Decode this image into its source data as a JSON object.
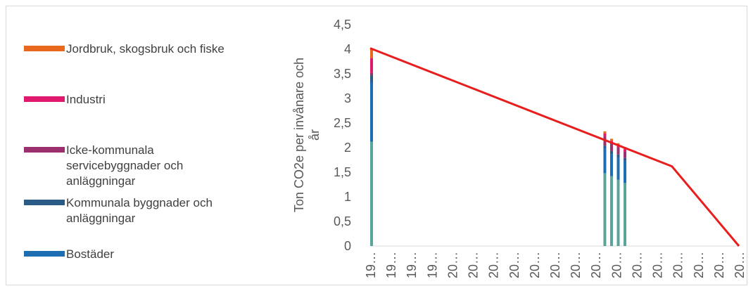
{
  "chart_data": {
    "type": "bar",
    "title": "",
    "ylabel_lines": [
      "Ton CO2e per invånare och",
      "år"
    ],
    "ylim": [
      0,
      4.5
    ],
    "y_ticks": [
      "0",
      "0,5",
      "1",
      "1,5",
      "2",
      "2,5",
      "3",
      "3,5",
      "4",
      "4,5"
    ],
    "x_tick_labels": [
      "19…",
      "19…",
      "19…",
      "19…",
      "20…",
      "20…",
      "20…",
      "20…",
      "20…",
      "20…",
      "20…",
      "20…",
      "20…",
      "20…",
      "20…",
      "20…",
      "20…",
      "20…",
      "20…"
    ],
    "grid": false,
    "legend_position": "left",
    "series": [
      {
        "name": "Jordbruk, skogsbruk och fiske",
        "color": "#e8681e",
        "points": [
          {
            "x": 1990,
            "y": 0.2
          },
          {
            "x": 2025,
            "y": 0.04
          },
          {
            "x": 2026,
            "y": 0.04
          },
          {
            "x": 2027,
            "y": 0.04
          },
          {
            "x": 2028,
            "y": 0.04
          }
        ]
      },
      {
        "name": "Industri",
        "color": "#e0196e",
        "points": [
          {
            "x": 1990,
            "y": 0.3
          },
          {
            "x": 2025,
            "y": 0.05
          },
          {
            "x": 2026,
            "y": 0.05
          },
          {
            "x": 2027,
            "y": 0.05
          },
          {
            "x": 2028,
            "y": 0.05
          }
        ]
      },
      {
        "name": "Icke-kommunala servicebyggnader och anläggningar",
        "color": "#9c2f6e",
        "points": [
          {
            "x": 1990,
            "y": 0.05
          },
          {
            "x": 2025,
            "y": 0.2
          },
          {
            "x": 2026,
            "y": 0.16
          },
          {
            "x": 2027,
            "y": 0.14
          },
          {
            "x": 2028,
            "y": 0.13
          }
        ]
      },
      {
        "name": "Kommunala byggnader och anläggningar",
        "color": "#2a5a86",
        "points": [
          {
            "x": 1990,
            "y": 0.15
          },
          {
            "x": 2025,
            "y": 0.06
          },
          {
            "x": 2026,
            "y": 0.06
          },
          {
            "x": 2027,
            "y": 0.06
          },
          {
            "x": 2028,
            "y": 0.06
          }
        ]
      },
      {
        "name": "Bostäder",
        "color": "#1d6db3",
        "points": [
          {
            "x": 1990,
            "y": 1.2
          },
          {
            "x": 2025,
            "y": 0.5
          },
          {
            "x": 2026,
            "y": 0.45
          },
          {
            "x": 2027,
            "y": 0.45
          },
          {
            "x": 2028,
            "y": 0.45
          }
        ]
      },
      {
        "name": "",
        "color": "#5ba49a",
        "points": [
          {
            "x": 1990,
            "y": 2.12
          },
          {
            "x": 2025,
            "y": 1.48
          },
          {
            "x": 2026,
            "y": 1.42
          },
          {
            "x": 2027,
            "y": 1.35
          },
          {
            "x": 2028,
            "y": 1.28
          }
        ]
      }
    ],
    "target_line": {
      "color": "#e81e1e",
      "points": [
        {
          "x": 1990,
          "y": 4.02
        },
        {
          "x": 2035,
          "y": 1.62
        },
        {
          "x": 2045,
          "y": 0
        }
      ]
    },
    "x_domain": [
      1990,
      2045
    ]
  }
}
